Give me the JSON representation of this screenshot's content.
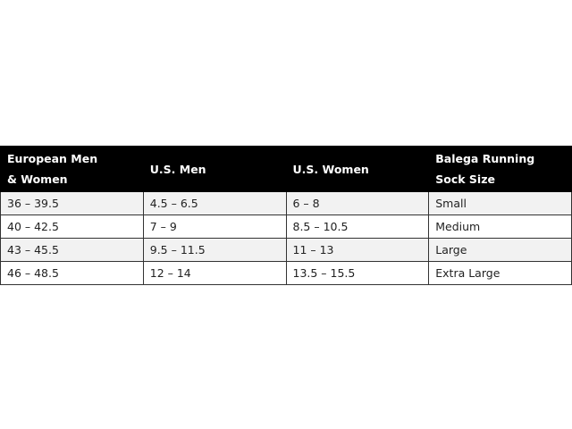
{
  "table": {
    "columns": [
      "European Men & Women",
      "U.S. Men",
      "U.S. Women",
      "Balega Running Sock Size"
    ],
    "rows": [
      [
        "36 – 39.5",
        "4.5 – 6.5",
        "6 – 8",
        "Small"
      ],
      [
        "40 – 42.5",
        "7 – 9",
        "8.5 – 10.5",
        "Medium"
      ],
      [
        "43 – 45.5",
        "9.5 – 11.5",
        "11 – 13",
        "Large"
      ],
      [
        "46 – 48.5",
        "12 – 14",
        "13.5 – 15.5",
        "Extra Large"
      ]
    ]
  }
}
